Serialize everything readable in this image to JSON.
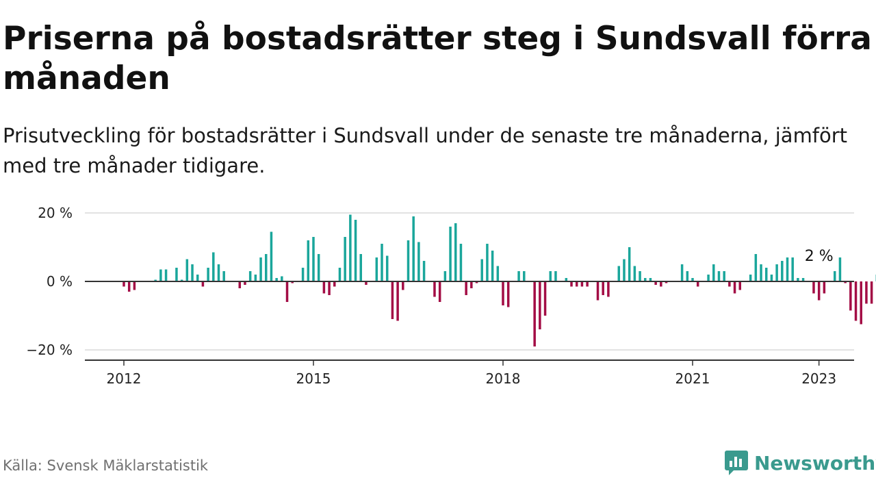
{
  "header": {
    "title": "Priserna på bostadsrätter steg i Sundsvall förra månaden",
    "subtitle": "Prisutveckling för bostadsrätter i Sundsvall under de senaste tre månaderna, jämfört med tre månader tidigare."
  },
  "footer": {
    "source": "Källa: Svensk Mäklarstatistik",
    "brand": "Newsworthy"
  },
  "colors": {
    "positive": "#1aa69b",
    "negative": "#a30d45",
    "brand": "#3a9a8e"
  },
  "chart_data": {
    "type": "bar",
    "title": "Priserna på bostadsrätter steg i Sundsvall förra månaden",
    "subtitle": "Prisutveckling för bostadsrätter i Sundsvall under de senaste tre månaderna, jämfört med tre månader tidigare.",
    "xlabel": "",
    "ylabel": "",
    "ylim": [
      -23,
      20
    ],
    "y_ticks": [
      {
        "value": 20,
        "label": "20 %"
      },
      {
        "value": 0,
        "label": "0 %"
      },
      {
        "value": -20,
        "label": "−20 %"
      }
    ],
    "x_ticks": [
      {
        "value": "2012-01",
        "label": "2012"
      },
      {
        "value": "2015-01",
        "label": "2015"
      },
      {
        "value": "2018-01",
        "label": "2018"
      },
      {
        "value": "2021-01",
        "label": "2021"
      },
      {
        "value": "2023-01",
        "label": "2023"
      }
    ],
    "grid": true,
    "annotation": {
      "x": "2023-01",
      "value": 2,
      "label": "2 %"
    },
    "start": "2012-01",
    "values": [
      -1.5,
      -3,
      -2.5,
      0,
      0,
      0,
      0.5,
      3.5,
      3.5,
      0,
      4,
      0.5,
      6.5,
      5,
      2,
      -1.5,
      4,
      8.5,
      5,
      3,
      0,
      0,
      -2,
      -1,
      3,
      2,
      7,
      8,
      14.5,
      1,
      1.5,
      -6,
      -0.5,
      0,
      4,
      12,
      13,
      8,
      -3.5,
      -4,
      -1.5,
      4,
      13,
      19.5,
      18,
      8,
      -1,
      0,
      7,
      11,
      7.5,
      -11,
      -11.5,
      -2.5,
      12,
      19,
      11.5,
      6,
      0,
      -4.5,
      -6,
      3,
      16,
      17,
      11,
      -4,
      -2,
      -0.5,
      6.5,
      11,
      9,
      4.5,
      -7,
      -7.5,
      0,
      3,
      3,
      0,
      -19,
      -14,
      -10,
      3,
      3,
      0,
      1,
      -1.5,
      -1.5,
      -1.5,
      -1.5,
      0,
      -5.5,
      -4,
      -4.5,
      0,
      4.5,
      6.5,
      10,
      4.5,
      3,
      1,
      1,
      -1,
      -1.5,
      -0.5,
      0,
      0,
      5,
      3,
      1,
      -1.5,
      0,
      2,
      5,
      3,
      3,
      -1.5,
      -3.5,
      -2.5,
      0,
      2,
      8,
      5,
      4,
      2,
      5,
      6,
      7,
      7,
      1,
      1,
      0,
      -3.5,
      -5.5,
      -3.5,
      0,
      3,
      7,
      -0.5,
      -8.5,
      -11.5,
      -12.5,
      -6.5,
      -6.5,
      2
    ]
  }
}
